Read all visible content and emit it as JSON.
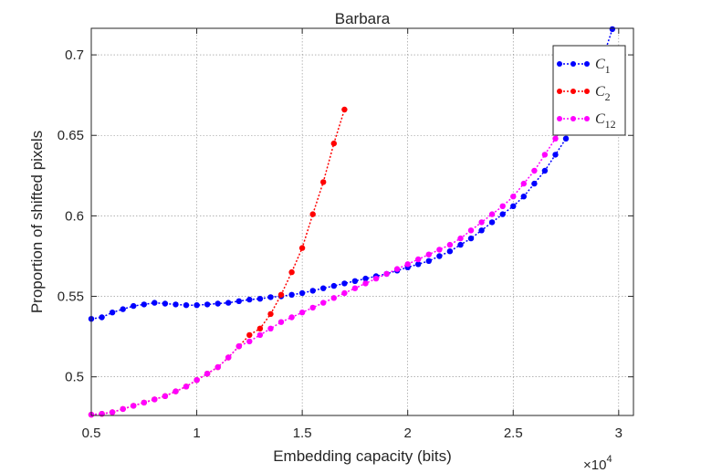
{
  "chart_data": {
    "type": "line",
    "title": "Barbara",
    "xlabel": "Embedding capacity (bits)",
    "ylabel": "Proportion of shifted pixels",
    "x_multiplier_label": "×10",
    "x_multiplier_exponent": "4",
    "xlim": [
      5000,
      30700
    ],
    "ylim": [
      0.476,
      0.7165
    ],
    "xticks": [
      5000,
      10000,
      15000,
      20000,
      25000,
      30000
    ],
    "xtick_labels": [
      "0.5",
      "1",
      "1.5",
      "2",
      "2.5",
      "3"
    ],
    "yticks": [
      0.5,
      0.55,
      0.6,
      0.65,
      0.7
    ],
    "ytick_labels": [
      "0.5",
      "0.55",
      "0.6",
      "0.65",
      "0.7"
    ],
    "grid": true,
    "legend_position": "top-right",
    "series": [
      {
        "name_main": "C",
        "name_sub": "1",
        "color": "#0000ff",
        "x": [
          5000,
          5500,
          6000,
          6500,
          7000,
          7500,
          8000,
          8500,
          9000,
          9500,
          10000,
          10500,
          11000,
          11500,
          12000,
          12500,
          13000,
          13500,
          14000,
          14500,
          15000,
          15500,
          16000,
          16500,
          17000,
          17500,
          18000,
          18500,
          19000,
          19500,
          20000,
          20500,
          21000,
          21500,
          22000,
          22500,
          23000,
          23500,
          24000,
          24500,
          25000,
          25500,
          26000,
          26500,
          27000,
          27500,
          28000,
          28500,
          29000,
          29300,
          29700
        ],
        "y": [
          0.536,
          0.537,
          0.54,
          0.542,
          0.544,
          0.545,
          0.546,
          0.5455,
          0.545,
          0.5445,
          0.5445,
          0.545,
          0.5455,
          0.546,
          0.547,
          0.548,
          0.5485,
          0.5495,
          0.55,
          0.551,
          0.552,
          0.5535,
          0.555,
          0.5565,
          0.558,
          0.5595,
          0.561,
          0.5625,
          0.564,
          0.566,
          0.568,
          0.57,
          0.572,
          0.575,
          0.578,
          0.582,
          0.586,
          0.591,
          0.596,
          0.601,
          0.606,
          0.612,
          0.62,
          0.628,
          0.638,
          0.648,
          0.658,
          0.669,
          0.685,
          0.7,
          0.716
        ]
      },
      {
        "name_main": "C",
        "name_sub": "2",
        "color": "#ff0000",
        "x": [
          5000,
          5500,
          6000,
          6500,
          7000,
          7500,
          8000,
          8500,
          9000,
          9500,
          10000,
          10500,
          11000,
          11500,
          12000,
          12500,
          13000,
          13500,
          14000,
          14500,
          15000,
          15500,
          16000,
          16500,
          17000
        ],
        "y": [
          0.4765,
          0.477,
          0.478,
          0.48,
          0.482,
          0.484,
          0.486,
          0.488,
          0.491,
          0.494,
          0.498,
          0.502,
          0.506,
          0.512,
          0.519,
          0.526,
          0.53,
          0.539,
          0.551,
          0.565,
          0.58,
          0.601,
          0.621,
          0.645,
          0.666
        ]
      },
      {
        "name_main": "C",
        "name_sub": "12",
        "color": "#ff00ff",
        "x": [
          5000,
          5500,
          6000,
          6500,
          7000,
          7500,
          8000,
          8500,
          9000,
          9500,
          10000,
          10500,
          11000,
          11500,
          12000,
          12500,
          13000,
          13500,
          14000,
          14500,
          15000,
          15500,
          16000,
          16500,
          17000,
          17500,
          18000,
          18500,
          19000,
          19500,
          20000,
          20500,
          21000,
          21500,
          22000,
          22500,
          23000,
          23500,
          24000,
          24500,
          25000,
          25500,
          26000,
          26500,
          27000,
          27500,
          28000,
          28500,
          29000
        ],
        "y": [
          0.4765,
          0.477,
          0.478,
          0.48,
          0.482,
          0.484,
          0.486,
          0.488,
          0.491,
          0.494,
          0.498,
          0.502,
          0.506,
          0.512,
          0.519,
          0.522,
          0.526,
          0.53,
          0.534,
          0.537,
          0.54,
          0.543,
          0.546,
          0.549,
          0.552,
          0.555,
          0.558,
          0.561,
          0.564,
          0.567,
          0.57,
          0.573,
          0.576,
          0.579,
          0.582,
          0.586,
          0.591,
          0.596,
          0.601,
          0.606,
          0.612,
          0.62,
          0.628,
          0.638,
          0.648,
          0.658,
          0.669,
          0.68,
          0.69
        ]
      }
    ]
  }
}
